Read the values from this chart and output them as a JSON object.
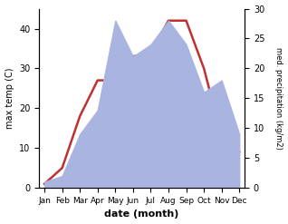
{
  "months": [
    "Jan",
    "Feb",
    "Mar",
    "Apr",
    "May",
    "Jun",
    "Jul",
    "Aug",
    "Sep",
    "Oct",
    "Nov",
    "Dec"
  ],
  "temp": [
    1,
    5,
    18,
    27,
    27,
    33,
    34,
    42,
    42,
    30,
    13,
    9
  ],
  "precip": [
    1,
    2,
    9,
    13,
    28,
    22,
    24,
    28,
    24,
    16,
    18,
    9
  ],
  "temp_color": "#c03030",
  "precip_color_fill": "#aab4e0",
  "temp_ylim": [
    0,
    45
  ],
  "precip_ylim": [
    0,
    30
  ],
  "temp_yticks": [
    0,
    10,
    20,
    30,
    40
  ],
  "precip_yticks": [
    0,
    5,
    10,
    15,
    20,
    25,
    30
  ],
  "ylabel_left": "max temp (C)",
  "ylabel_right": "med. precipitation (kg/m2)",
  "xlabel": "date (month)",
  "bg_color": "#ffffff"
}
